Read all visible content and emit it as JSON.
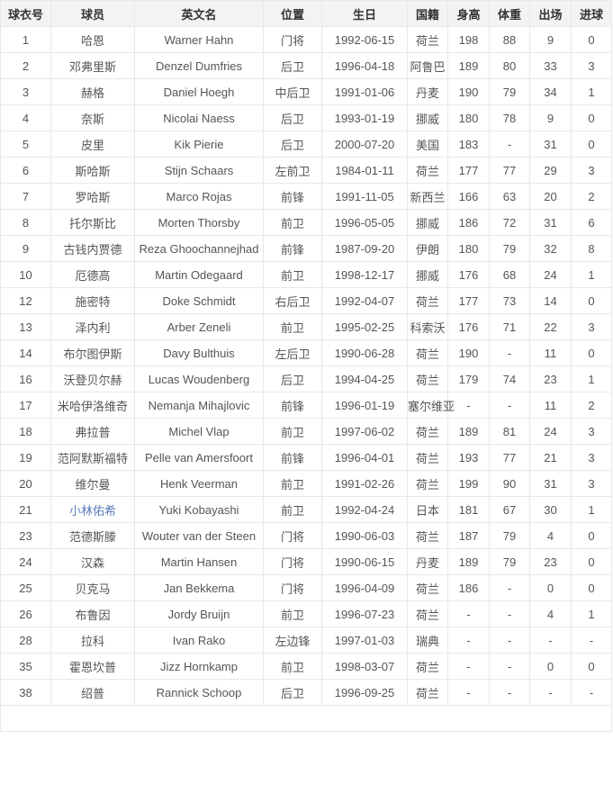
{
  "colors": {
    "header_bg": "#f3f3f3",
    "border": "#e8e8e8",
    "header_text": "#333333",
    "body_text": "#555555",
    "link": "#5b7cba",
    "page_bg": "#ffffff"
  },
  "table": {
    "columns": [
      "球衣号",
      "球员",
      "英文名",
      "位置",
      "生日",
      "国籍",
      "身高",
      "体重",
      "出场",
      "进球"
    ],
    "column_keys": [
      "jersey-number",
      "player-name",
      "english-name",
      "position",
      "birthday",
      "nationality",
      "height",
      "weight",
      "appearances",
      "goals"
    ],
    "rows": [
      {
        "cells": [
          "1",
          "哈恩",
          "Warner Hahn",
          "门将",
          "1992-06-15",
          "荷兰",
          "198",
          "88",
          "9",
          "0"
        ],
        "player_link": false
      },
      {
        "cells": [
          "2",
          "邓弗里斯",
          "Denzel Dumfries",
          "后卫",
          "1996-04-18",
          "阿鲁巴",
          "189",
          "80",
          "33",
          "3"
        ],
        "player_link": false
      },
      {
        "cells": [
          "3",
          "赫格",
          "Daniel Hoegh",
          "中后卫",
          "1991-01-06",
          "丹麦",
          "190",
          "79",
          "34",
          "1"
        ],
        "player_link": false
      },
      {
        "cells": [
          "4",
          "奈斯",
          "Nicolai Naess",
          "后卫",
          "1993-01-19",
          "挪威",
          "180",
          "78",
          "9",
          "0"
        ],
        "player_link": false
      },
      {
        "cells": [
          "5",
          "皮里",
          "Kik Pierie",
          "后卫",
          "2000-07-20",
          "美国",
          "183",
          "-",
          "31",
          "0"
        ],
        "player_link": false
      },
      {
        "cells": [
          "6",
          "斯哈斯",
          "Stijn Schaars",
          "左前卫",
          "1984-01-11",
          "荷兰",
          "177",
          "77",
          "29",
          "3"
        ],
        "player_link": false
      },
      {
        "cells": [
          "7",
          "罗哈斯",
          "Marco Rojas",
          "前锋",
          "1991-11-05",
          "新西兰",
          "166",
          "63",
          "20",
          "2"
        ],
        "player_link": false
      },
      {
        "cells": [
          "8",
          "托尔斯比",
          "Morten Thorsby",
          "前卫",
          "1996-05-05",
          "挪威",
          "186",
          "72",
          "31",
          "6"
        ],
        "player_link": false
      },
      {
        "cells": [
          "9",
          "古钱内贾德",
          "Reza Ghoochannejhad",
          "前锋",
          "1987-09-20",
          "伊朗",
          "180",
          "79",
          "32",
          "8"
        ],
        "player_link": false
      },
      {
        "cells": [
          "10",
          "厄德高",
          "Martin Odegaard",
          "前卫",
          "1998-12-17",
          "挪威",
          "176",
          "68",
          "24",
          "1"
        ],
        "player_link": false
      },
      {
        "cells": [
          "12",
          "施密特",
          "Doke Schmidt",
          "右后卫",
          "1992-04-07",
          "荷兰",
          "177",
          "73",
          "14",
          "0"
        ],
        "player_link": false
      },
      {
        "cells": [
          "13",
          "泽内利",
          "Arber Zeneli",
          "前卫",
          "1995-02-25",
          "科索沃",
          "176",
          "71",
          "22",
          "3"
        ],
        "player_link": false
      },
      {
        "cells": [
          "14",
          "布尔图伊斯",
          "Davy Bulthuis",
          "左后卫",
          "1990-06-28",
          "荷兰",
          "190",
          "-",
          "11",
          "0"
        ],
        "player_link": false
      },
      {
        "cells": [
          "16",
          "沃登贝尔赫",
          "Lucas Woudenberg",
          "后卫",
          "1994-04-25",
          "荷兰",
          "179",
          "74",
          "23",
          "1"
        ],
        "player_link": false
      },
      {
        "cells": [
          "17",
          "米哈伊洛维奇",
          "Nemanja Mihajlovic",
          "前锋",
          "1996-01-19",
          "塞尔维亚",
          "-",
          "-",
          "11",
          "2"
        ],
        "player_link": false
      },
      {
        "cells": [
          "18",
          "弗拉普",
          "Michel Vlap",
          "前卫",
          "1997-06-02",
          "荷兰",
          "189",
          "81",
          "24",
          "3"
        ],
        "player_link": false
      },
      {
        "cells": [
          "19",
          "范阿默斯福特",
          "Pelle van Amersfoort",
          "前锋",
          "1996-04-01",
          "荷兰",
          "193",
          "77",
          "21",
          "3"
        ],
        "player_link": false
      },
      {
        "cells": [
          "20",
          "维尔曼",
          "Henk Veerman",
          "前卫",
          "1991-02-26",
          "荷兰",
          "199",
          "90",
          "31",
          "3"
        ],
        "player_link": false
      },
      {
        "cells": [
          "21",
          "小林佑希",
          "Yuki Kobayashi",
          "前卫",
          "1992-04-24",
          "日本",
          "181",
          "67",
          "30",
          "1"
        ],
        "player_link": true
      },
      {
        "cells": [
          "23",
          "范德斯滕",
          "Wouter van der Steen",
          "门将",
          "1990-06-03",
          "荷兰",
          "187",
          "79",
          "4",
          "0"
        ],
        "player_link": false
      },
      {
        "cells": [
          "24",
          "汉森",
          "Martin Hansen",
          "门将",
          "1990-06-15",
          "丹麦",
          "189",
          "79",
          "23",
          "0"
        ],
        "player_link": false
      },
      {
        "cells": [
          "25",
          "贝克马",
          "Jan Bekkema",
          "门将",
          "1996-04-09",
          "荷兰",
          "186",
          "-",
          "0",
          "0"
        ],
        "player_link": false
      },
      {
        "cells": [
          "26",
          "布鲁因",
          "Jordy Bruijn",
          "前卫",
          "1996-07-23",
          "荷兰",
          "-",
          "-",
          "4",
          "1"
        ],
        "player_link": false
      },
      {
        "cells": [
          "28",
          "拉科",
          "Ivan Rako",
          "左边锋",
          "1997-01-03",
          "瑞典",
          "-",
          "-",
          "-",
          "-"
        ],
        "player_link": false
      },
      {
        "cells": [
          "35",
          "霍恩坎普",
          "Jizz Hornkamp",
          "前卫",
          "1998-03-07",
          "荷兰",
          "-",
          "-",
          "0",
          "0"
        ],
        "player_link": false
      },
      {
        "cells": [
          "38",
          "绍普",
          "Rannick Schoop",
          "后卫",
          "1996-09-25",
          "荷兰",
          "-",
          "-",
          "-",
          "-"
        ],
        "player_link": false
      }
    ],
    "footer_row_text": ""
  }
}
